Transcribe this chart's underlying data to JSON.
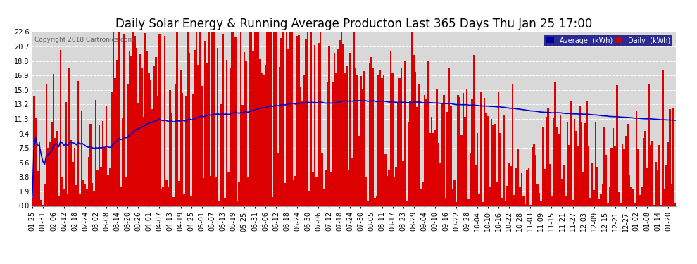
{
  "title": "Daily Solar Energy & Running Average Producton Last 365 Days Thu Jan 25 17:00",
  "copyright": "Copyright 2018 Cartronics.com",
  "legend_avg_label": "Average  (kWh)",
  "legend_daily_label": "Daily  (kWh)",
  "legend_avg_color": "#000099",
  "legend_daily_color": "#cc0000",
  "bar_color": "#dd0000",
  "line_color": "#0000cc",
  "background_color": "#ffffff",
  "plot_bg_color": "#d8d8d8",
  "grid_color": "#ffffff",
  "ylim": [
    0.0,
    22.6
  ],
  "yticks": [
    0.0,
    1.9,
    3.8,
    5.6,
    7.5,
    9.4,
    11.3,
    13.2,
    15.0,
    16.9,
    18.8,
    20.7,
    22.6
  ],
  "title_fontsize": 12,
  "tick_fontsize": 7,
  "figsize": [
    9.9,
    3.75
  ],
  "dpi": 100
}
